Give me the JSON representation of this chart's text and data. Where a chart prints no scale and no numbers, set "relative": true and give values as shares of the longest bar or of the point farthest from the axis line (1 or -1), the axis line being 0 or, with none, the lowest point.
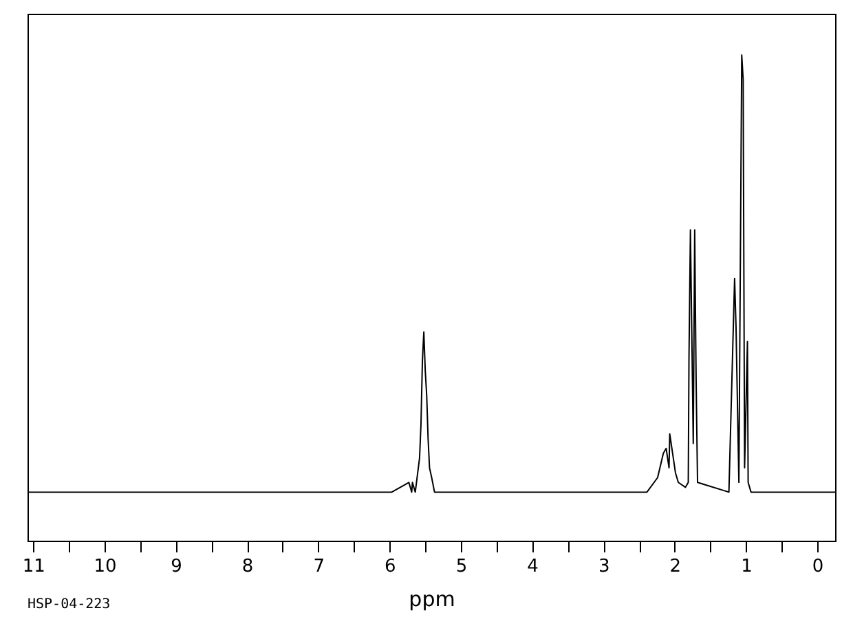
{
  "chart_data": {
    "type": "line",
    "relative": true,
    "xlabel": "ppm",
    "xlim": [
      11.08,
      -0.25
    ],
    "xticks": [
      11,
      {
        "value": 10.5,
        "label": null
      },
      10,
      {
        "value": 9.5,
        "label": null
      },
      9,
      {
        "value": 8.5,
        "label": null
      },
      8,
      {
        "value": 7.5,
        "label": null
      },
      7,
      {
        "value": 6.5,
        "label": null
      },
      6,
      {
        "value": 5.5,
        "label": null
      },
      5,
      {
        "value": 4.5,
        "label": null
      },
      4,
      {
        "value": 3.5,
        "label": null
      },
      3,
      {
        "value": 2.5,
        "label": null
      },
      2,
      {
        "value": 1.5,
        "label": null
      },
      1,
      {
        "value": 0.5,
        "label": null
      },
      0
    ],
    "grid": false,
    "tick_labels": "x",
    "annotations": [
      "HSP-04-223"
    ],
    "series": [
      {
        "color": "#000000",
        "x": [
          11.08,
          5.97,
          5.73,
          5.69,
          5.68,
          5.64,
          5.58,
          5.56,
          5.54,
          5.52,
          5.5,
          5.48,
          5.46,
          5.44,
          5.41,
          5.37,
          2.39,
          2.24,
          2.16,
          2.12,
          2.08,
          2.07,
          2.03,
          1.99,
          1.95,
          1.85,
          1.81,
          1.8,
          1.78,
          1.74,
          1.72,
          1.7,
          1.68,
          1.24,
          1.16,
          1.14,
          1.1,
          1.06,
          1.04,
          1.02,
          0.98,
          0.97,
          0.93,
          -0.25
        ],
        "values": [
          0.1,
          0.1,
          0.12,
          0.1,
          0.12,
          0.1,
          0.17,
          0.24,
          0.37,
          0.43,
          0.35,
          0.3,
          0.21,
          0.15,
          0.13,
          0.1,
          0.1,
          0.13,
          0.18,
          0.19,
          0.15,
          0.22,
          0.18,
          0.14,
          0.12,
          0.11,
          0.12,
          0.38,
          0.64,
          0.2,
          0.64,
          0.33,
          0.12,
          0.1,
          0.54,
          0.44,
          0.12,
          1,
          0.95,
          0.15,
          0.41,
          0.12,
          0.1,
          0.1
        ]
      }
    ]
  }
}
